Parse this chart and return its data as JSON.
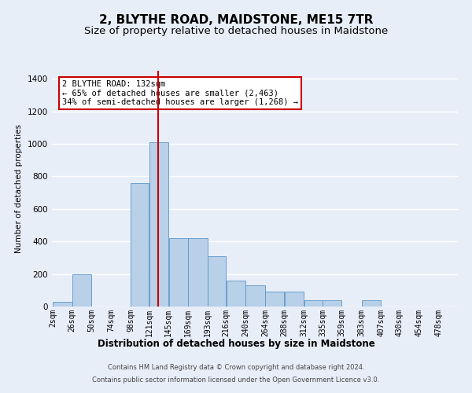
{
  "title": "2, BLYTHE ROAD, MAIDSTONE, ME15 7TR",
  "subtitle": "Size of property relative to detached houses in Maidstone",
  "xlabel": "Distribution of detached houses by size in Maidstone",
  "ylabel": "Number of detached properties",
  "footnote1": "Contains HM Land Registry data © Crown copyright and database right 2024.",
  "footnote2": "Contains public sector information licensed under the Open Government Licence v3.0.",
  "annotation_line1": "2 BLYTHE ROAD: 132sqm",
  "annotation_line2": "← 65% of detached houses are smaller (2,463)",
  "annotation_line3": "34% of semi-detached houses are larger (1,268) →",
  "bar_color": "#b8d0e8",
  "bar_edge_color": "#5a96c8",
  "vline_color": "#cc0000",
  "categories": [
    2,
    26,
    50,
    74,
    98,
    121,
    145,
    169,
    193,
    216,
    240,
    264,
    288,
    312,
    335,
    359,
    383,
    407,
    430,
    454,
    478
  ],
  "bin_edges": [
    2,
    26,
    50,
    74,
    98,
    121,
    145,
    169,
    193,
    216,
    240,
    264,
    288,
    312,
    335,
    359,
    383,
    407,
    430,
    454,
    478,
    502
  ],
  "values": [
    30,
    200,
    0,
    0,
    760,
    1010,
    420,
    420,
    310,
    160,
    130,
    90,
    90,
    40,
    40,
    0,
    40,
    0,
    0,
    0,
    0
  ],
  "vline_x": 132,
  "ylim": [
    0,
    1450
  ],
  "yticks": [
    0,
    200,
    400,
    600,
    800,
    1000,
    1200,
    1400
  ],
  "bg_color": "#e8eef8",
  "plot_bg_color": "#e8eef8",
  "grid_color": "#ffffff",
  "title_fontsize": 11,
  "subtitle_fontsize": 9.5,
  "annotation_box_color": "#ffffff",
  "annotation_box_edge": "#cc0000",
  "annotation_fontsize": 7.5,
  "xlabel_fontsize": 8.5,
  "ylabel_fontsize": 7.5,
  "tick_fontsize": 7,
  "ytick_fontsize": 7.5,
  "footnote_fontsize": 6
}
